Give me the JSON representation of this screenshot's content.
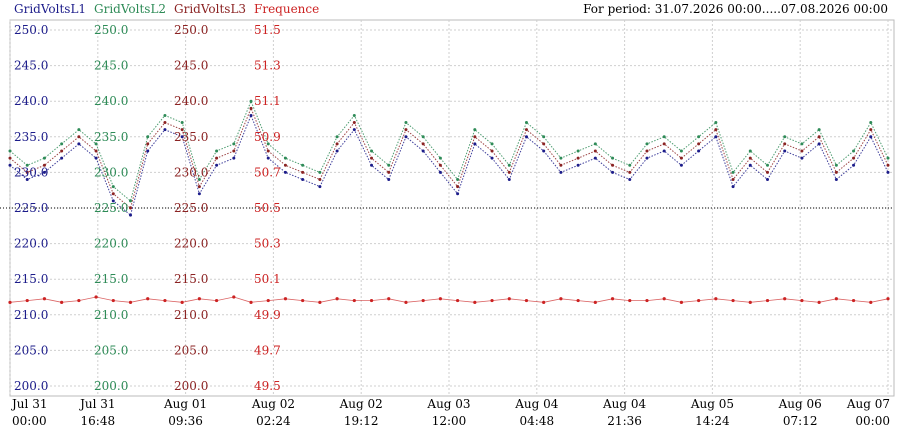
{
  "period_text": "For period: 31.07.2026 00:00.....07.08.2026 00:00",
  "legend": [
    {
      "label": "GridVoltsL1",
      "color": "#1c1c8a"
    },
    {
      "label": "GridVoltsL2",
      "color": "#2e8b57"
    },
    {
      "label": "GridVoltsL3",
      "color": "#8b2323"
    },
    {
      "label": "Frequence",
      "color": "#cc2222"
    }
  ],
  "chart_data": {
    "type": "scatter",
    "title": "",
    "x_range": [
      "31.07.2026 00:00",
      "07.08.2026 00:00"
    ],
    "x_ticks": [
      {
        "line1": "Jul 31",
        "line2": "00:00"
      },
      {
        "line1": "Jul 31",
        "line2": "16:48"
      },
      {
        "line1": "Aug 01",
        "line2": "09:36"
      },
      {
        "line1": "Aug 02",
        "line2": "02:24"
      },
      {
        "line1": "Aug 02",
        "line2": "19:12"
      },
      {
        "line1": "Aug 03",
        "line2": "12:00"
      },
      {
        "line1": "Aug 04",
        "line2": "04:48"
      },
      {
        "line1": "Aug 04",
        "line2": "21:36"
      },
      {
        "line1": "Aug 05",
        "line2": "14:24"
      },
      {
        "line1": "Aug 06",
        "line2": "07:12"
      },
      {
        "line1": "Aug 07",
        "line2": "00:00"
      }
    ],
    "volt_axis": {
      "min": 200,
      "max": 250,
      "ticks": [
        "250.0",
        "245.0",
        "240.0",
        "235.0",
        "230.0",
        "225.0",
        "220.0",
        "215.0",
        "210.0",
        "205.0",
        "200.0"
      ]
    },
    "freq_axis": {
      "min": 49.5,
      "max": 51.5,
      "ticks": [
        "51.5",
        "51.3",
        "51.1",
        "50.9",
        "50.7",
        "50.5",
        "50.3",
        "50.1",
        "49.9",
        "49.7",
        "49.5"
      ]
    },
    "axis_colors": [
      "#1c1c8a",
      "#2e8b57",
      "#8b2323",
      "#cc2222"
    ],
    "grid": true,
    "reference_line_volts": 225,
    "series": [
      {
        "name": "GridVoltsL1",
        "color": "#1c1c8a",
        "values": [
          231,
          229,
          230,
          232,
          234,
          232,
          226,
          224,
          233,
          236,
          235,
          227,
          231,
          232,
          238,
          232,
          230,
          229,
          228,
          233,
          236,
          231,
          229,
          235,
          233,
          230,
          227,
          234,
          232,
          229,
          235,
          233,
          230,
          231,
          232,
          230,
          229,
          232,
          233,
          231,
          233,
          235,
          228,
          231,
          229,
          233,
          232,
          234,
          229,
          231,
          235,
          230
        ]
      },
      {
        "name": "GridVoltsL2",
        "color": "#2e8b57",
        "values": [
          233,
          231,
          232,
          234,
          236,
          234,
          228,
          226,
          235,
          238,
          237,
          229,
          233,
          234,
          240,
          234,
          232,
          231,
          230,
          235,
          238,
          233,
          231,
          237,
          235,
          232,
          229,
          236,
          234,
          231,
          237,
          235,
          232,
          233,
          234,
          232,
          231,
          234,
          235,
          233,
          235,
          237,
          230,
          233,
          231,
          235,
          234,
          236,
          231,
          233,
          237,
          232
        ]
      },
      {
        "name": "GridVoltsL3",
        "color": "#8b2323",
        "values": [
          232,
          230,
          231,
          233,
          235,
          233,
          227,
          225,
          234,
          237,
          236,
          228,
          232,
          233,
          239,
          233,
          231,
          230,
          229,
          234,
          237,
          232,
          230,
          236,
          234,
          231,
          228,
          235,
          233,
          230,
          236,
          234,
          231,
          232,
          233,
          231,
          230,
          233,
          234,
          232,
          234,
          236,
          229,
          232,
          230,
          234,
          233,
          235,
          230,
          232,
          236,
          231
        ]
      },
      {
        "name": "Frequence",
        "color": "#cc2222",
        "values": [
          49.97,
          49.98,
          49.99,
          49.97,
          49.98,
          50.0,
          49.98,
          49.97,
          49.99,
          49.98,
          49.97,
          49.99,
          49.98,
          50.0,
          49.97,
          49.98,
          49.99,
          49.98,
          49.97,
          49.99,
          49.98,
          49.98,
          49.99,
          49.97,
          49.98,
          49.99,
          49.98,
          49.97,
          49.98,
          49.99,
          49.98,
          49.97,
          49.99,
          49.98,
          49.97,
          49.99,
          49.98,
          49.98,
          49.99,
          49.97,
          49.98,
          49.99,
          49.98,
          49.97,
          49.98,
          49.99,
          49.98,
          49.97,
          49.99,
          49.98,
          49.97,
          49.99
        ]
      }
    ]
  }
}
